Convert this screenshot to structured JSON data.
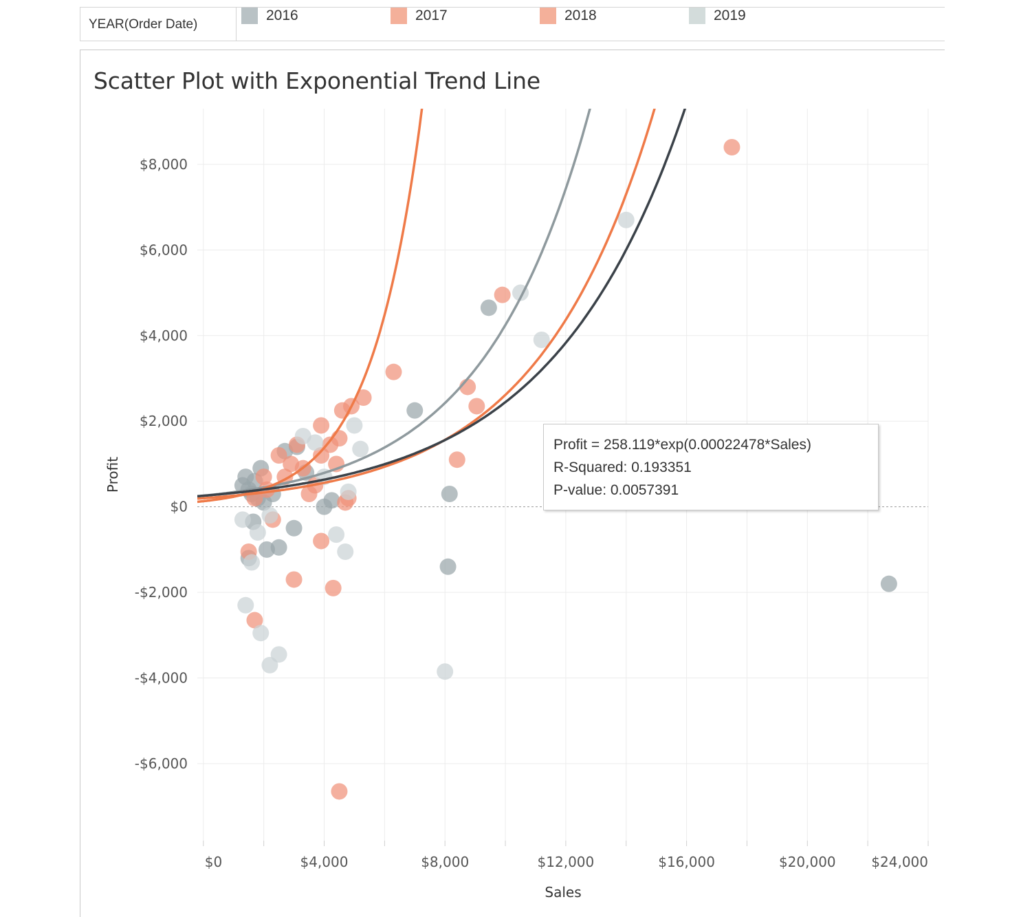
{
  "legend": {
    "field_label": "YEAR(Order Date)",
    "items": [
      {
        "label": "2016",
        "color": "#b9c2c5"
      },
      {
        "label": "2017",
        "color": "#f4b09a"
      },
      {
        "label": "2018",
        "color": "#f4b09a"
      },
      {
        "label": "2019",
        "color": "#d3dcdb"
      }
    ]
  },
  "title": "Scatter Plot with Exponential Trend Line",
  "tooltip": {
    "line1": "Profit = 258.119*exp(0.00022478*Sales)",
    "line2": "R-Squared: 0.193351",
    "line3": "P-value: 0.0057391"
  },
  "chart_data": {
    "type": "scatter",
    "title": "Scatter Plot with Exponential Trend Line",
    "xlabel": "Sales",
    "ylabel": "Profit",
    "xlim": [
      -200,
      24000
    ],
    "ylim": [
      -7800,
      9300
    ],
    "xticks": [
      0,
      4000,
      8000,
      12000,
      16000,
      20000,
      24000
    ],
    "xtick_labels": [
      "$0",
      "$4,000",
      "$8,000",
      "$12,000",
      "$16,000",
      "$20,000",
      "$24,000"
    ],
    "yticks": [
      8000,
      6000,
      4000,
      2000,
      0,
      -2000,
      -4000,
      -6000
    ],
    "ytick_labels": [
      "$8,000",
      "$6,000",
      "$4,000",
      "$2,000",
      "$0",
      "-$2,000",
      "-$4,000",
      "-$6,000"
    ],
    "grid": true,
    "series": [
      {
        "name": "2016",
        "color": "#9aa6ab",
        "points": [
          [
            1300,
            500
          ],
          [
            1500,
            400
          ],
          [
            1600,
            300
          ],
          [
            1700,
            600
          ],
          [
            1800,
            200
          ],
          [
            1400,
            700
          ],
          [
            2000,
            100
          ],
          [
            1650,
            -350
          ],
          [
            1500,
            -1200
          ],
          [
            2100,
            -1000
          ],
          [
            2500,
            -950
          ],
          [
            3000,
            -500
          ],
          [
            2700,
            1300
          ],
          [
            3400,
            800
          ],
          [
            2300,
            300
          ],
          [
            4000,
            0
          ],
          [
            4250,
            150
          ],
          [
            7000,
            2250
          ],
          [
            8150,
            300
          ],
          [
            8100,
            -1400
          ],
          [
            9450,
            4650
          ],
          [
            22700,
            -1800
          ],
          [
            3100,
            1400
          ],
          [
            1900,
            900
          ]
        ]
      },
      {
        "name": "2017",
        "color": "#f0917a",
        "points": [
          [
            1500,
            -1050
          ],
          [
            1700,
            -2650
          ],
          [
            3000,
            -1700
          ],
          [
            3900,
            -800
          ],
          [
            4300,
            -1900
          ],
          [
            4500,
            -6650
          ],
          [
            6300,
            3150
          ],
          [
            8750,
            2800
          ],
          [
            9050,
            2350
          ],
          [
            8400,
            1100
          ],
          [
            4600,
            2250
          ],
          [
            4900,
            2350
          ],
          [
            5300,
            2550
          ],
          [
            3900,
            1900
          ],
          [
            2500,
            1200
          ],
          [
            2900,
            1000
          ],
          [
            3300,
            900
          ],
          [
            3700,
            500
          ],
          [
            2300,
            -300
          ],
          [
            4700,
            100
          ],
          [
            2000,
            700
          ]
        ]
      },
      {
        "name": "2018",
        "color": "#f0917a",
        "points": [
          [
            9900,
            4950
          ],
          [
            17500,
            8400
          ],
          [
            4500,
            1600
          ],
          [
            4200,
            1450
          ],
          [
            4800,
            200
          ],
          [
            3100,
            1450
          ],
          [
            2700,
            700
          ],
          [
            3500,
            300
          ],
          [
            3900,
            1200
          ],
          [
            2100,
            400
          ],
          [
            1700,
            200
          ],
          [
            4400,
            1000
          ]
        ]
      },
      {
        "name": "2019",
        "color": "#cbd3d5",
        "points": [
          [
            10500,
            5000
          ],
          [
            11200,
            3900
          ],
          [
            14000,
            6700
          ],
          [
            5000,
            1900
          ],
          [
            5200,
            1350
          ],
          [
            4800,
            350
          ],
          [
            4400,
            -650
          ],
          [
            4700,
            -1050
          ],
          [
            1400,
            -2300
          ],
          [
            1900,
            -2950
          ],
          [
            2200,
            -3700
          ],
          [
            2500,
            -3450
          ],
          [
            8000,
            -3850
          ],
          [
            3300,
            1650
          ],
          [
            4000,
            700
          ],
          [
            1800,
            -600
          ],
          [
            2200,
            -200
          ],
          [
            1600,
            -1300
          ],
          [
            3700,
            1500
          ],
          [
            1300,
            -300
          ]
        ]
      }
    ],
    "trendlines": [
      {
        "series": "2016",
        "color": "#8f9a9e",
        "a": 258.119,
        "b": 0.00028
      },
      {
        "series": "2017",
        "color": "#ef7a48",
        "a": 130,
        "b": 0.00059
      },
      {
        "series": "2018",
        "color": "#ef7a48",
        "a": 200,
        "b": 0.000257
      },
      {
        "series": "2019",
        "color": "#3b4249",
        "a": 258.119,
        "b": 0.00022478
      }
    ]
  }
}
